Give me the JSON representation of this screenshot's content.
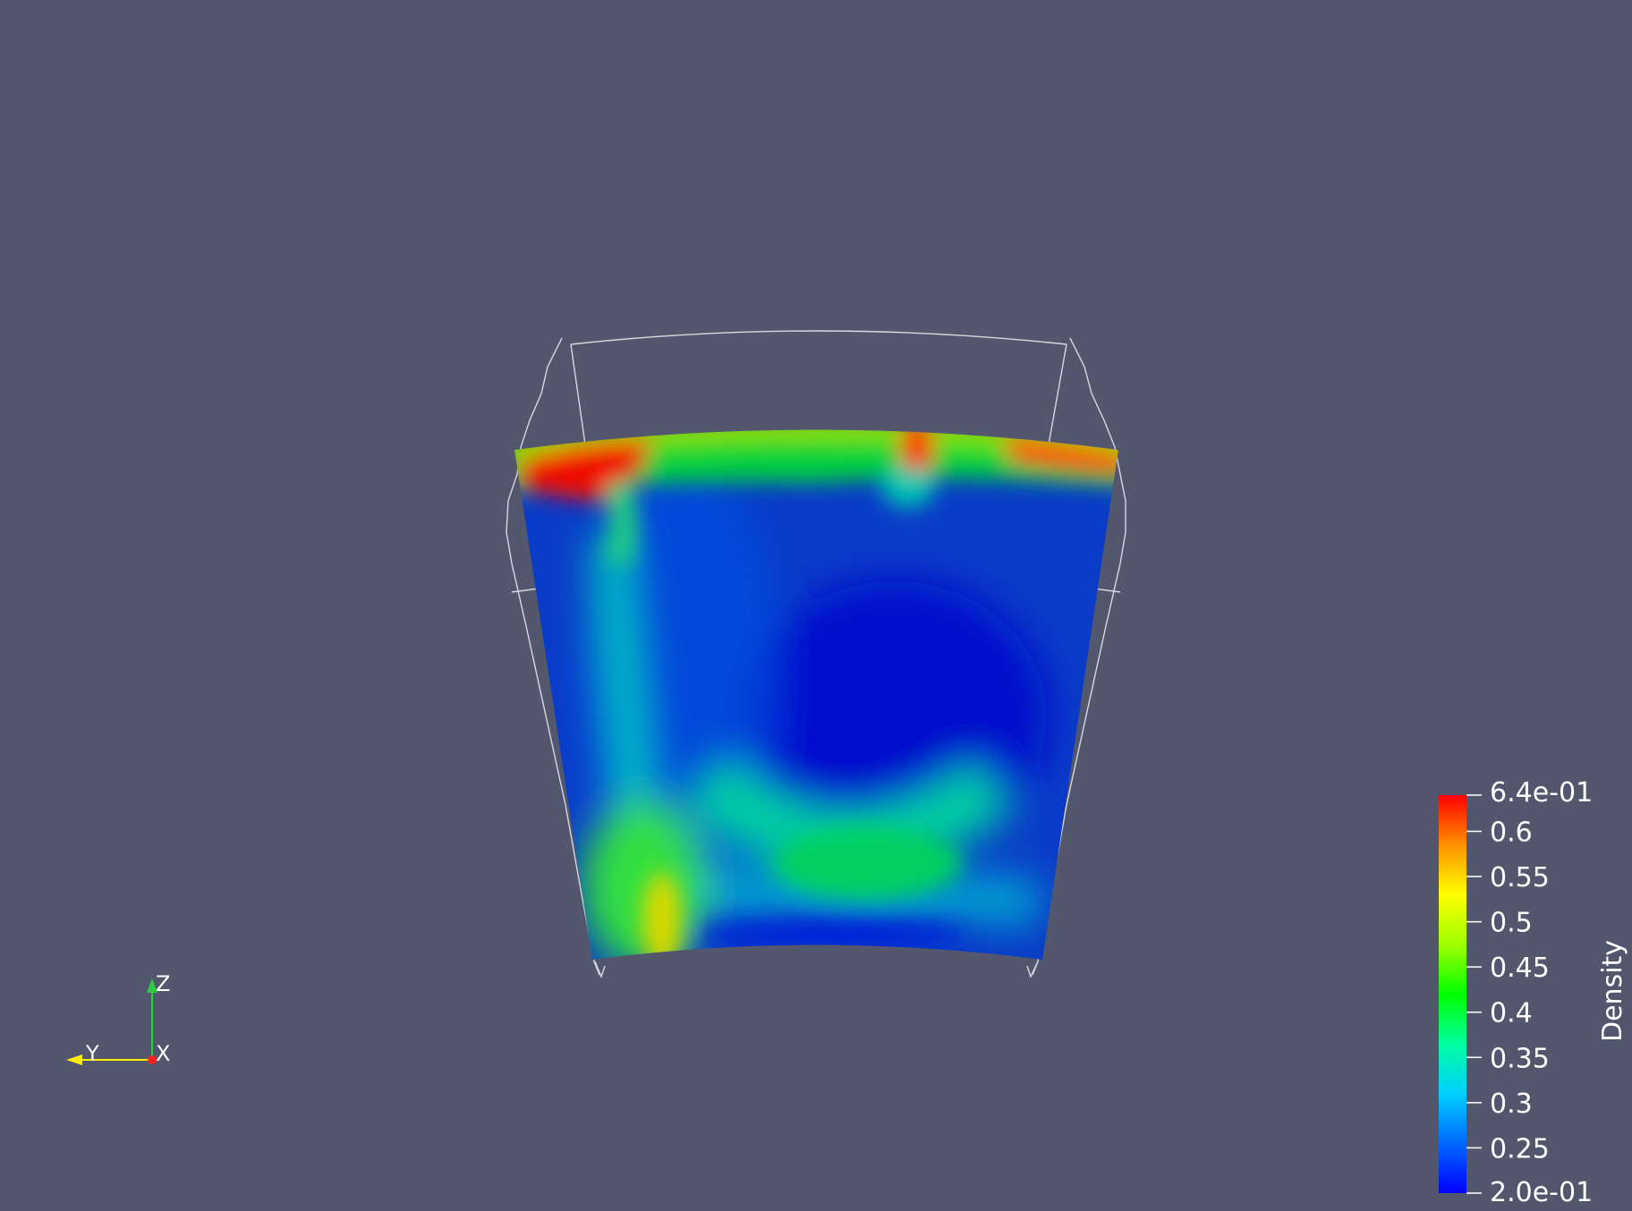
{
  "scene": {
    "background": "#52576e",
    "field": {
      "name": "Density",
      "range": [
        0.2,
        0.64
      ]
    }
  },
  "colorbar": {
    "title": "Density",
    "max_label": "6.4e-01",
    "min_label": "2.0e-01",
    "ticks": [
      "0.6",
      "0.55",
      "0.5",
      "0.45",
      "0.4",
      "0.35",
      "0.3",
      "0.25"
    ],
    "colormap": [
      "#0000ff",
      "#0068ff",
      "#00d0ff",
      "#00ffa0",
      "#00ff00",
      "#a0ff00",
      "#ffff00",
      "#ff9000",
      "#ff0000"
    ]
  },
  "axes_triad": {
    "z_label": "Z",
    "y_label": "Y",
    "x_label": "X",
    "colors": {
      "z": "#2ecc40",
      "y": "#ffee00",
      "x": "#ff2020"
    }
  }
}
